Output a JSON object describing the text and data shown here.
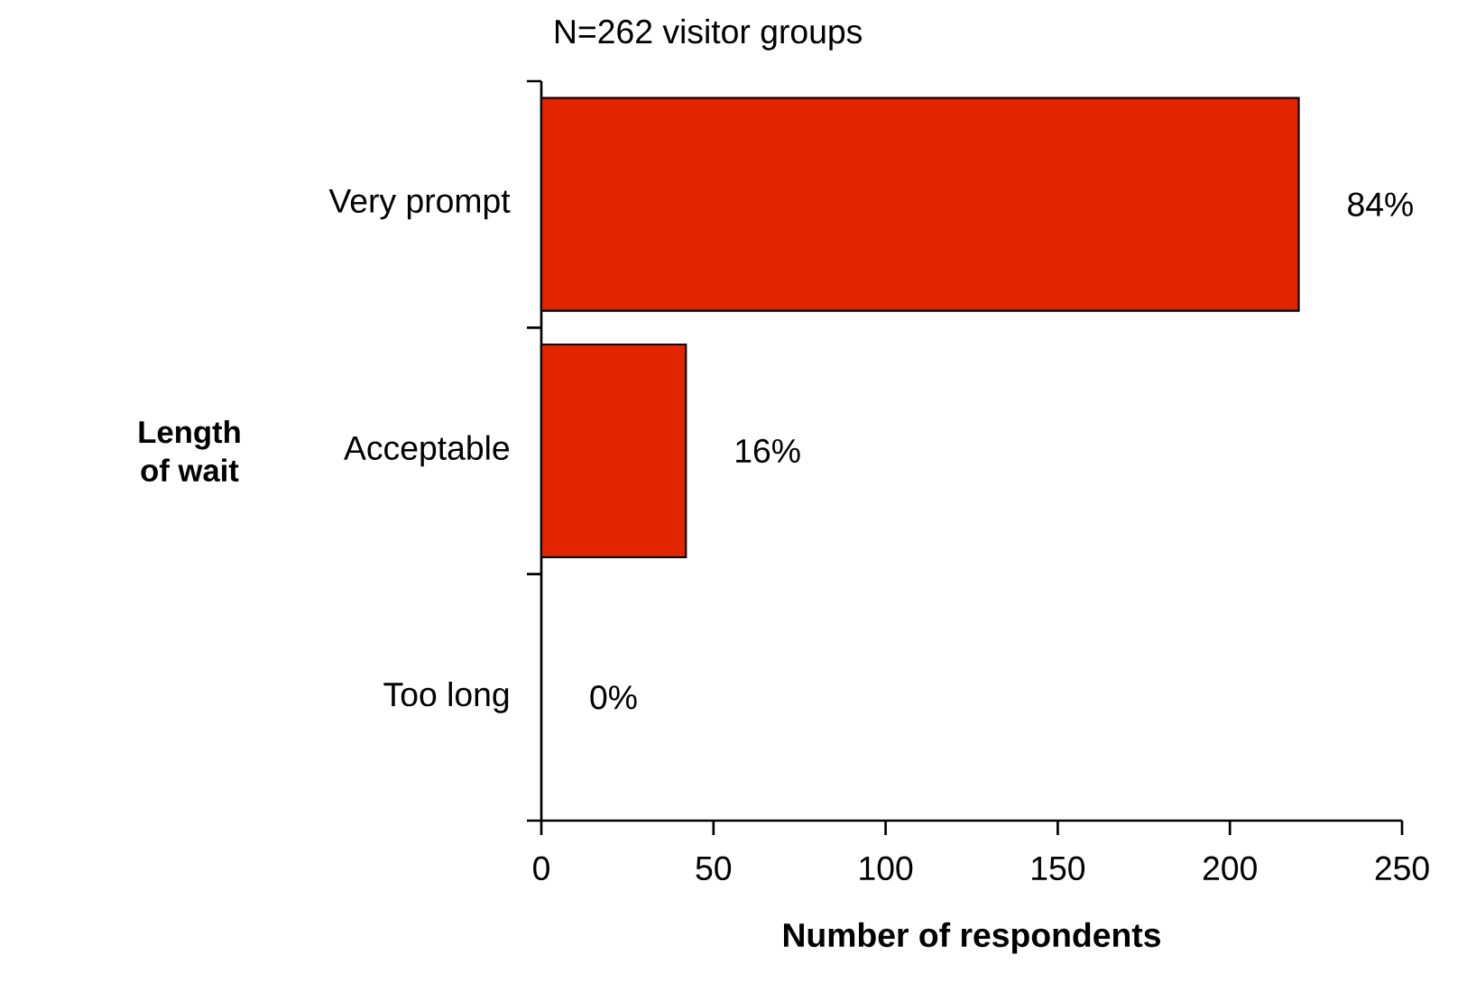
{
  "chart_data": {
    "type": "bar",
    "orientation": "horizontal",
    "title": "N=262 visitor groups",
    "xlabel": "Number of respondents",
    "ylabel": "Length of wait",
    "categories": [
      "Very prompt",
      "Acceptable",
      "Too long"
    ],
    "values": [
      220,
      42,
      0
    ],
    "annotations": [
      {
        "text": "84%",
        "x": 220,
        "y": "Very prompt"
      },
      {
        "text": "16%",
        "x": 42,
        "y": "Acceptable"
      },
      {
        "text": "0%",
        "x": 0,
        "y": "Too long"
      }
    ],
    "color": "#e32400",
    "xlim": [
      0,
      250
    ],
    "xticks": [
      0,
      50,
      100,
      150,
      200,
      250
    ],
    "grid": false
  }
}
